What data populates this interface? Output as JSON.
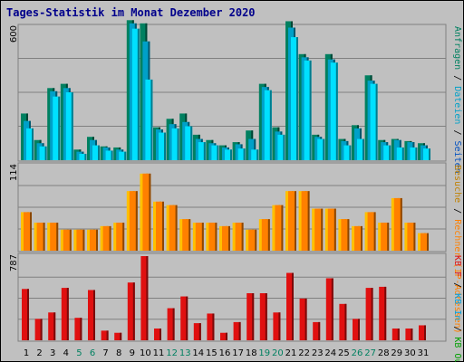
{
  "title": "Tages-Statistik im Monat Dezember 2020",
  "colors": {
    "background": "#c0c0c0",
    "plot_bg": "#c0c0c0",
    "title": "#00008b",
    "anfragen": "#008060",
    "dateien": "#00a0c8",
    "seiten": "#00e0ff",
    "besuche": "#ffc000",
    "rechner": "#ff8000",
    "kb_in": "#00a0e0",
    "kb_out": "#00a000",
    "kb_f": "#e01010",
    "weekend_label": "#008060"
  },
  "chart_data": [
    {
      "type": "bar",
      "title": "Tages-Statistik im Monat Dezember 2020",
      "ylabel": "Anfragen / Dateien / Seiten",
      "ytick": "600",
      "ylim": [
        0,
        640
      ],
      "series": [
        {
          "name": "Anfragen",
          "values": [
            220,
            95,
            340,
            360,
            50,
            110,
            65,
            60,
            660,
            645,
            155,
            195,
            220,
            120,
            95,
            70,
            85,
            140,
            360,
            155,
            655,
            500,
            120,
            500,
            100,
            165,
            400,
            95,
            100,
            90,
            80
          ]
        },
        {
          "name": "Dateien",
          "values": [
            185,
            80,
            325,
            340,
            40,
            95,
            60,
            50,
            645,
            560,
            145,
            170,
            180,
            100,
            80,
            60,
            75,
            100,
            345,
            135,
            625,
            485,
            110,
            475,
            90,
            150,
            375,
            85,
            95,
            85,
            70
          ]
        },
        {
          "name": "Seiten",
          "values": [
            150,
            65,
            300,
            320,
            30,
            70,
            45,
            40,
            620,
            380,
            130,
            150,
            160,
            85,
            70,
            50,
            55,
            50,
            330,
            120,
            580,
            470,
            100,
            460,
            70,
            100,
            360,
            70,
            60,
            60,
            55
          ]
        }
      ],
      "categories": [
        "1",
        "2",
        "3",
        "4",
        "5",
        "6",
        "7",
        "8",
        "9",
        "10",
        "11",
        "12",
        "13",
        "14",
        "15",
        "16",
        "17",
        "18",
        "19",
        "20",
        "21",
        "22",
        "23",
        "24",
        "25",
        "26",
        "27",
        "28",
        "29",
        "30",
        "31"
      ],
      "legend_right": [
        "Anfragen",
        "Dateien",
        "Seiten"
      ]
    },
    {
      "type": "bar",
      "ytick": "114",
      "ylim": [
        0,
        124
      ],
      "series": [
        {
          "name": "Besuche",
          "values": [
            55,
            40,
            40,
            30,
            30,
            30,
            35,
            40,
            85,
            110,
            70,
            65,
            45,
            40,
            40,
            35,
            40,
            30,
            45,
            65,
            85,
            85,
            60,
            60,
            45,
            35,
            55,
            40,
            75,
            40,
            25
          ]
        },
        {
          "name": "Rechner",
          "values": [
            55,
            40,
            40,
            30,
            30,
            30,
            35,
            40,
            85,
            110,
            70,
            65,
            45,
            40,
            40,
            35,
            40,
            30,
            45,
            65,
            85,
            85,
            60,
            60,
            45,
            35,
            55,
            40,
            75,
            40,
            25
          ]
        }
      ],
      "legend_right": [
        "Besuche",
        "Rechner (IP-Adressen)"
      ]
    },
    {
      "type": "bar",
      "ytick": "787",
      "ylim": [
        0,
        787
      ],
      "series": [
        {
          "name": "KB F",
          "values": [
            480,
            200,
            260,
            490,
            210,
            470,
            90,
            70,
            540,
            787,
            110,
            300,
            410,
            160,
            250,
            70,
            170,
            440,
            440,
            260,
            630,
            390,
            170,
            580,
            340,
            200,
            490,
            500,
            110,
            110,
            140
          ]
        }
      ],
      "legend_right": [
        "KB F",
        "KB In",
        "KB Out"
      ]
    }
  ]
}
